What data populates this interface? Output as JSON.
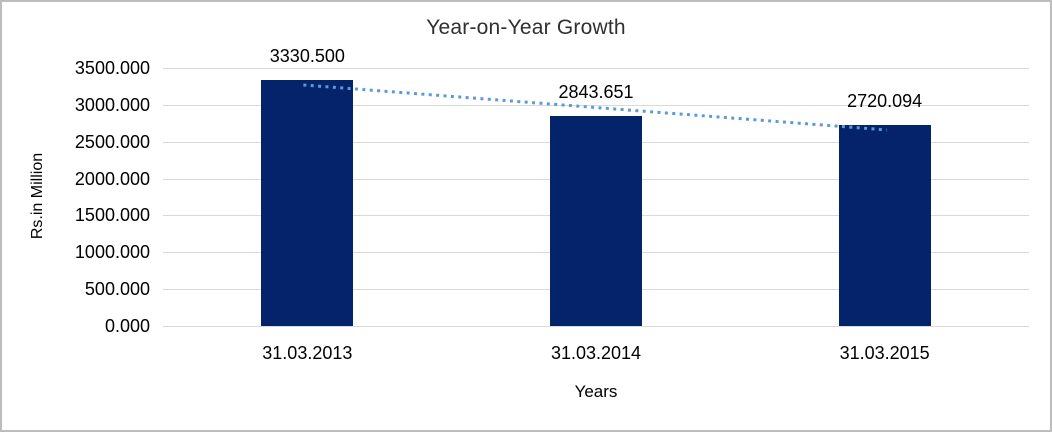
{
  "chart_data": {
    "type": "bar",
    "title": "Year-on-Year Growth",
    "categories": [
      "31.03.2013",
      "31.03.2014",
      "31.03.2015"
    ],
    "values": [
      3330.5,
      2843.651,
      2720.094
    ],
    "data_labels": [
      "3330.500",
      "2843.651",
      "2720.094"
    ],
    "xlabel": "Years",
    "ylabel": "Rs.in Million",
    "ylim": [
      0,
      3500
    ],
    "ytick_step": 500,
    "ytick_labels": [
      "0.000",
      "500.000",
      "1000.000",
      "1500.000",
      "2000.000",
      "2500.000",
      "3000.000",
      "3500.000"
    ],
    "grid": true,
    "legend": "none",
    "trendline": {
      "type": "linear",
      "style": "dotted",
      "color": "#5b9bd5"
    },
    "colors": {
      "bar": "#05236b",
      "gridline": "#d9d9d9",
      "title_text": "#303030",
      "axis_text": "#000000",
      "frame_border": "#bdbdbd",
      "background": "#ffffff"
    }
  }
}
